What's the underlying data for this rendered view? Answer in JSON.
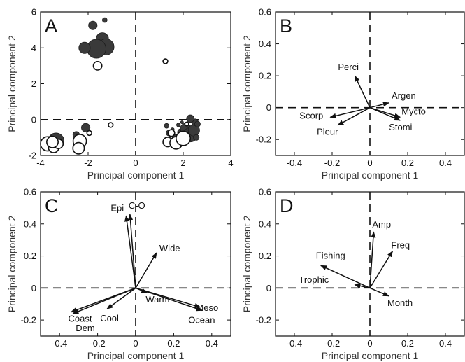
{
  "chart_data": [
    {
      "type": "scatter",
      "panel_label": "A",
      "xlabel": "Principal component 1",
      "ylabel": "Principal component 2",
      "xlim": [
        -4,
        4
      ],
      "ylim": [
        -2,
        6
      ],
      "xticks": [
        -4,
        -2,
        0,
        2,
        4
      ],
      "yticks": [
        -2,
        0,
        2,
        4,
        6
      ],
      "grid": false,
      "series": [
        {
          "style": "filled-gray",
          "points": [
            {
              "x": -1.3,
              "y": 5.55,
              "s": 0.1
            },
            {
              "x": -1.8,
              "y": 5.25,
              "s": 0.18
            },
            {
              "x": -1.4,
              "y": 4.5,
              "s": 0.26
            },
            {
              "x": -1.25,
              "y": 4.05,
              "s": 0.34
            },
            {
              "x": -1.65,
              "y": 3.95,
              "s": 0.4
            },
            {
              "x": -2.15,
              "y": 4.0,
              "s": 0.24
            },
            {
              "x": -3.35,
              "y": -1.2,
              "s": 0.34
            },
            {
              "x": -3.55,
              "y": -1.0,
              "s": 0.08
            },
            {
              "x": -2.1,
              "y": -0.45,
              "s": 0.18
            },
            {
              "x": -2.5,
              "y": -0.85,
              "s": 0.14
            },
            {
              "x": -3.65,
              "y": -1.35,
              "s": 0.1
            },
            {
              "x": 1.3,
              "y": -0.35,
              "s": 0.1
            },
            {
              "x": 1.4,
              "y": -0.75,
              "s": 0.12
            },
            {
              "x": 1.7,
              "y": -1.05,
              "s": 0.16
            },
            {
              "x": 1.55,
              "y": -0.55,
              "s": 0.07
            },
            {
              "x": 1.9,
              "y": -0.7,
              "s": 0.14
            },
            {
              "x": 2.1,
              "y": -0.5,
              "s": 0.22
            },
            {
              "x": 2.3,
              "y": -0.85,
              "s": 0.3
            },
            {
              "x": 2.45,
              "y": -0.6,
              "s": 0.24
            },
            {
              "x": 2.5,
              "y": -0.15,
              "s": 0.14
            },
            {
              "x": 2.3,
              "y": 0.05,
              "s": 0.16
            },
            {
              "x": 2.6,
              "y": -0.25,
              "s": 0.12
            },
            {
              "x": 1.8,
              "y": -0.3,
              "s": 0.08
            },
            {
              "x": 2.55,
              "y": -1.0,
              "s": 0.12
            },
            {
              "x": 2.2,
              "y": -1.1,
              "s": 0.1
            },
            {
              "x": 1.95,
              "y": -0.15,
              "s": 0.06
            },
            {
              "x": 2.15,
              "y": -0.95,
              "s": 0.08
            }
          ]
        },
        {
          "style": "open",
          "points": [
            {
              "x": -1.6,
              "y": 3.0,
              "s": 0.18
            },
            {
              "x": 1.25,
              "y": 3.25,
              "s": 0.1
            },
            {
              "x": -2.35,
              "y": -1.2,
              "s": 0.28
            },
            {
              "x": -2.4,
              "y": -1.6,
              "s": 0.24
            },
            {
              "x": -1.95,
              "y": -0.75,
              "s": 0.1
            },
            {
              "x": -1.05,
              "y": -0.3,
              "s": 0.1
            },
            {
              "x": -3.7,
              "y": -1.35,
              "s": 0.3
            },
            {
              "x": -3.45,
              "y": -1.55,
              "s": 0.22
            },
            {
              "x": -3.25,
              "y": -1.35,
              "s": 0.2
            },
            {
              "x": -3.5,
              "y": -1.25,
              "s": 0.24
            },
            {
              "x": 1.35,
              "y": -1.25,
              "s": 0.2
            },
            {
              "x": 1.7,
              "y": -1.3,
              "s": 0.26
            },
            {
              "x": 2.0,
              "y": -1.05,
              "s": 0.3
            },
            {
              "x": 1.5,
              "y": -0.75,
              "s": 0.14
            },
            {
              "x": 2.15,
              "y": -0.25,
              "s": 0.08
            }
          ]
        }
      ]
    },
    {
      "type": "vector",
      "panel_label": "B",
      "xlabel": "Principal component 1",
      "ylabel": "Principal component 2",
      "xlim": [
        -0.5,
        0.5
      ],
      "ylim": [
        -0.3,
        0.6
      ],
      "xticks": [
        -0.4,
        -0.2,
        0,
        0.2,
        0.4
      ],
      "yticks": [
        -0.2,
        0,
        0.2,
        0.4,
        0.6
      ],
      "grid": false,
      "vectors": [
        {
          "name": "Perci",
          "x": -0.08,
          "y": 0.2
        },
        {
          "name": "Argen",
          "x": 0.1,
          "y": 0.03
        },
        {
          "name": "Scorp",
          "x": -0.21,
          "y": -0.06
        },
        {
          "name": "Pleur",
          "x": -0.17,
          "y": -0.11
        },
        {
          "name": "Mycto",
          "x": 0.16,
          "y": -0.06
        },
        {
          "name": "Stomi",
          "x": 0.16,
          "y": -0.08
        }
      ]
    },
    {
      "type": "vector",
      "panel_label": "C",
      "xlabel": "Principal component 1",
      "ylabel": "Principal component 2",
      "xlim": [
        -0.5,
        0.5
      ],
      "ylim": [
        -0.3,
        0.6
      ],
      "xticks": [
        -0.4,
        -0.2,
        0,
        0.2,
        0.4
      ],
      "yticks": [
        -0.2,
        0,
        0.2,
        0.4,
        0.6
      ],
      "grid": false,
      "vectors": [
        {
          "name": "Epi",
          "x": -0.05,
          "y": 0.45
        },
        {
          "name": "C-O",
          "x": -0.03,
          "y": 0.46
        },
        {
          "name": "Wide",
          "x": 0.11,
          "y": 0.22
        },
        {
          "name": "Warm",
          "x": 0.06,
          "y": -0.03
        },
        {
          "name": "Cool",
          "x": -0.15,
          "y": -0.13
        },
        {
          "name": "Coast",
          "x": -0.34,
          "y": -0.15
        },
        {
          "name": "Dem",
          "x": -0.33,
          "y": -0.16
        },
        {
          "name": "Meso",
          "x": 0.34,
          "y": -0.12
        },
        {
          "name": "Ocean",
          "x": 0.35,
          "y": -0.14
        }
      ]
    },
    {
      "type": "vector",
      "panel_label": "D",
      "xlabel": "Principal component 1",
      "ylabel": "Principal component 2",
      "xlim": [
        -0.5,
        0.5
      ],
      "ylim": [
        -0.3,
        0.6
      ],
      "xticks": [
        -0.4,
        -0.2,
        0,
        0.2,
        0.4
      ],
      "yticks": [
        -0.2,
        0,
        0.2,
        0.4,
        0.6
      ],
      "grid": false,
      "vectors": [
        {
          "name": "Amp",
          "x": 0.02,
          "y": 0.35
        },
        {
          "name": "Freq",
          "x": 0.12,
          "y": 0.23
        },
        {
          "name": "Fishing",
          "x": -0.26,
          "y": 0.14
        },
        {
          "name": "Trophic",
          "x": -0.08,
          "y": 0.02
        },
        {
          "name": "Month",
          "x": 0.1,
          "y": -0.05
        }
      ]
    }
  ]
}
